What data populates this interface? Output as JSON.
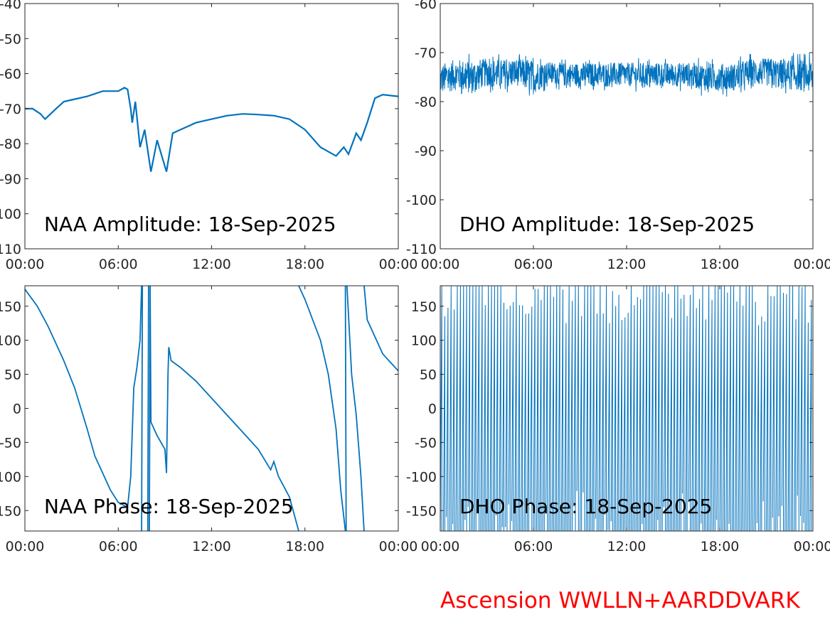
{
  "line_color": "#0072BD",
  "footer": {
    "text": "Ascension WWLLN+AARDDVARK",
    "color": "#FF0000"
  },
  "chart_data": [
    {
      "id": "naa-amp",
      "type": "line",
      "title": "NAA Amplitude: 18-Sep-2025",
      "xlim": [
        0,
        24
      ],
      "ylim": [
        -110,
        -40
      ],
      "xticks": [
        "00:00",
        "06:00",
        "12:00",
        "18:00",
        "00:00"
      ],
      "yticks": [
        -40,
        -50,
        -60,
        -70,
        -80,
        -90,
        -100,
        -110
      ],
      "x": [
        0,
        0.5,
        1,
        1.3,
        2,
        2.5,
        3,
        4,
        5,
        6,
        6.4,
        6.6,
        6.8,
        6.9,
        7.1,
        7.4,
        7.7,
        8.1,
        8.5,
        9.1,
        9.5,
        10,
        11,
        12,
        13,
        14,
        15,
        16,
        17,
        18,
        19,
        20,
        20.5,
        20.8,
        21.3,
        21.6,
        22,
        22.5,
        23,
        24
      ],
      "y": [
        -70,
        -70,
        -71.5,
        -73,
        -70,
        -68,
        -67.5,
        -66.5,
        -65,
        -65,
        -64,
        -64.5,
        -70,
        -74,
        -68,
        -81,
        -76,
        -88,
        -79,
        -88,
        -77,
        -76,
        -74,
        -73,
        -72,
        -71.5,
        -71.7,
        -72,
        -73,
        -76,
        -81,
        -83.5,
        -81,
        -83,
        -77,
        -79,
        -74,
        -67,
        -66,
        -66.5
      ]
    },
    {
      "id": "dho-amp",
      "type": "line",
      "title": "DHO Amplitude: 18-Sep-2025",
      "xlim": [
        0,
        24
      ],
      "ylim": [
        -110,
        -60
      ],
      "xticks": [
        "00:00",
        "06:00",
        "12:00",
        "18:00",
        "00:00"
      ],
      "yticks": [
        -60,
        -70,
        -80,
        -90,
        -100,
        -110
      ],
      "x": [
        0,
        1,
        2,
        3,
        4,
        5,
        6,
        7,
        8,
        9,
        10,
        11,
        12,
        13,
        14,
        15,
        16,
        17,
        18,
        19,
        20,
        21,
        22,
        23,
        24
      ],
      "y_min": [
        -80,
        -79,
        -80,
        -78,
        -79,
        -78,
        -80,
        -77,
        -78,
        -78,
        -78,
        -78,
        -78,
        -78,
        -78,
        -78,
        -78,
        -79,
        -79,
        -79,
        -78,
        -78,
        -79,
        -79,
        -80
      ],
      "y_max": [
        -71,
        -70,
        -70,
        -70,
        -70,
        -70,
        -70,
        -71,
        -71,
        -71,
        -71,
        -71,
        -71,
        -71,
        -71,
        -71,
        -71,
        -71,
        -71,
        -71,
        -70,
        -70,
        -70,
        -70,
        -70
      ]
    },
    {
      "id": "naa-phase",
      "type": "line",
      "title": "NAA Phase: 18-Sep-2025",
      "xlim": [
        0,
        24
      ],
      "ylim": [
        -180,
        180
      ],
      "xticks": [
        "00:00",
        "06:00",
        "12:00",
        "18:00",
        "00:00"
      ],
      "yticks": [
        150,
        100,
        50,
        0,
        -50,
        -100,
        -150
      ],
      "points": [
        [
          0,
          175
        ],
        [
          0.8,
          150
        ],
        [
          1.5,
          120
        ],
        [
          2.5,
          70
        ],
        [
          3.2,
          30
        ],
        [
          4,
          -30
        ],
        [
          4.5,
          -70
        ],
        [
          5,
          -95
        ],
        [
          5.5,
          -120
        ],
        [
          6,
          -138
        ],
        [
          6.6,
          -145
        ],
        [
          6.8,
          -100
        ],
        [
          7,
          30
        ],
        [
          7.2,
          60
        ],
        [
          7.4,
          100
        ],
        [
          7.5,
          180
        ],
        null,
        [
          7.5,
          -180
        ],
        [
          7.55,
          180
        ],
        null,
        [
          7.9,
          -180
        ],
        [
          7.95,
          180
        ],
        null,
        [
          8.0,
          -180
        ],
        [
          8.05,
          180
        ],
        [
          8.1,
          -20
        ],
        [
          8.5,
          -40
        ],
        [
          9,
          -60
        ],
        [
          9.1,
          -95
        ],
        [
          9.2,
          50
        ],
        [
          9.25,
          90
        ],
        [
          9.4,
          70
        ],
        [
          10,
          60
        ],
        [
          11,
          40
        ],
        [
          12,
          15
        ],
        [
          13,
          -10
        ],
        [
          14,
          -35
        ],
        [
          15,
          -60
        ],
        [
          15.8,
          -90
        ],
        [
          16,
          -78
        ],
        [
          16.3,
          -100
        ],
        [
          17,
          -130
        ],
        [
          17.6,
          -180
        ],
        null,
        [
          17.6,
          180
        ],
        [
          18,
          160
        ],
        [
          19,
          100
        ],
        [
          19.5,
          50
        ],
        [
          20,
          -30
        ],
        [
          20.3,
          -120
        ],
        [
          20.6,
          -180
        ],
        null,
        [
          20.6,
          180
        ],
        [
          20.65,
          -180
        ],
        null,
        [
          20.7,
          180
        ],
        [
          21,
          50
        ],
        [
          21.3,
          -10
        ],
        [
          21.6,
          -100
        ],
        [
          21.8,
          -180
        ],
        null,
        [
          21.8,
          180
        ],
        [
          22,
          130
        ],
        [
          23,
          80
        ],
        [
          24,
          55
        ]
      ]
    },
    {
      "id": "dho-phase",
      "type": "line",
      "title": "DHO Phase: 18-Sep-2025",
      "xlim": [
        0,
        24
      ],
      "ylim": [
        -180,
        180
      ],
      "xticks": [
        "00:00",
        "06:00",
        "12:00",
        "18:00",
        "00:00"
      ],
      "yticks": [
        150,
        100,
        50,
        0,
        -50,
        -100,
        -150
      ],
      "wrap_period_hours": 0.2
    }
  ]
}
